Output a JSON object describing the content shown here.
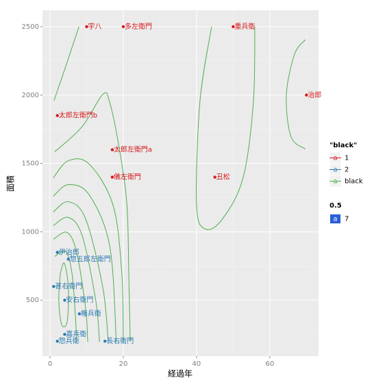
{
  "chart_data": {
    "type": "scatter",
    "x_label": "経過年",
    "y_label": "面積",
    "xlim": [
      -2.06,
      73.3
    ],
    "ylim": [
      90,
      2620
    ],
    "xticks": [
      0,
      20,
      40,
      60
    ],
    "yticks": [
      500,
      1000,
      1500,
      2000,
      2500
    ],
    "grid": true,
    "series": [
      {
        "name": "1",
        "color": "#d7191c",
        "x": [
          10,
          20,
          50,
          70,
          2,
          17,
          17,
          45
        ],
        "y": [
          2500,
          2500,
          2500,
          2000,
          1850,
          1600,
          1400,
          1400
        ],
        "labels": [
          "宇八",
          "多左衛門",
          "重兵衛",
          "治郎",
          "太郎左衛門b",
          "太郎左衛門a",
          "儀左衛門",
          "丑松"
        ]
      },
      {
        "name": "2",
        "color": "#2c7bb6",
        "x": [
          2,
          5,
          1,
          4,
          8,
          4,
          2,
          15
        ],
        "y": [
          850,
          800,
          600,
          500,
          400,
          250,
          200,
          200
        ],
        "labels": [
          "伊治郎",
          "惣五郎左衛門",
          "甚右衛門",
          "安右衛門",
          "権兵衛",
          "嘉兵衛",
          "惣兵衛",
          "長右衛門"
        ]
      }
    ],
    "contour_name": "black",
    "contour_color": "#4daf4a",
    "contours": [
      {
        "x": [
          1.1,
          4.1,
          7.9
        ],
        "y": [
          1960,
          2195,
          2500
        ]
      },
      {
        "x": [
          1.3,
          8.8,
          14.4,
          16.3,
          19,
          21,
          21.5,
          21.9
        ],
        "y": [
          1585,
          1770,
          2005,
          1945,
          1595,
          1195,
          695,
          195
        ]
      },
      {
        "x": [
          0.9,
          5,
          10.7,
          17.2,
          19.6,
          20
        ],
        "y": [
          1395,
          1520,
          1495,
          1195,
          695,
          195
        ]
      },
      {
        "x": [
          0.9,
          5,
          10.7,
          16.3,
          18.1
        ],
        "y": [
          1260,
          1345,
          1270,
          895,
          195
        ]
      },
      {
        "x": [
          0.9,
          5,
          9.7,
          14.4,
          15.9
        ],
        "y": [
          1145,
          1220,
          1095,
          595,
          195
        ]
      },
      {
        "x": [
          0.9,
          5,
          8.8,
          12.5,
          13.5
        ],
        "y": [
          1045,
          1105,
          970,
          495,
          195
        ]
      },
      {
        "x": [
          0.9,
          4.7,
          7.3,
          9.7,
          10.3
        ],
        "y": [
          945,
          995,
          845,
          445,
          195
        ]
      },
      {
        "x": [
          1.3,
          4.3,
          6,
          6.9,
          7.3
        ],
        "y": [
          820,
          855,
          695,
          395,
          195
        ]
      },
      {
        "x": [
          2.8,
          3.9,
          5,
          4.7,
          3.2,
          2.4,
          2.8
        ],
        "y": [
          695,
          770,
          595,
          345,
          320,
          495,
          695
        ]
      },
      {
        "x": [
          44.1,
          40.9,
          40,
          42.4,
          47.1,
          52.7,
          55.5,
          55.9
        ],
        "y": [
          2500,
          1945,
          1195,
          1020,
          1095,
          1395,
          1945,
          2500
        ]
      },
      {
        "x": [
          69.7,
          66.7,
          64.5,
          65.8,
          69.7
        ],
        "y": [
          2405,
          2295,
          1995,
          1695,
          1605
        ]
      }
    ],
    "legend_title": "\"black\"",
    "legend_key_text": "a",
    "size_legend_title": "0.5",
    "size_legend_entry": "7",
    "size_legend_color": "#2a5fd6"
  }
}
